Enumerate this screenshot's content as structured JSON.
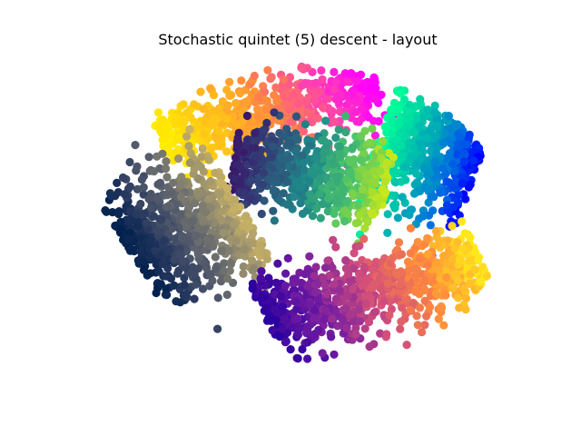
{
  "chart_data": {
    "type": "scatter",
    "title": "Stochastic quintet (5) descent - layout",
    "xlabel": "",
    "ylabel": "",
    "axes_visible": false,
    "grid": false,
    "legend": "none",
    "xlim": [
      -1.0,
      1.0
    ],
    "ylim": [
      -1.0,
      1.0
    ],
    "approx_point_count": 3500,
    "clusters": [
      {
        "id": "outer-yellow-orange-magenta-top",
        "color_ramp": [
          "#ffee00",
          "#ffc21a",
          "#ff8a3d",
          "#ff3fb2",
          "#ff00ff"
        ],
        "center": [
          -0.15,
          0.7
        ],
        "spread": [
          0.55,
          0.25
        ],
        "rotation_deg": 20,
        "points": 650
      },
      {
        "id": "teal-blue-right-lobe",
        "color_ramp": [
          "#00ff99",
          "#00d6a4",
          "#00a6b8",
          "#0070e0",
          "#0000ff"
        ],
        "center": [
          0.62,
          0.45
        ],
        "spread": [
          0.25,
          0.45
        ],
        "rotation_deg": -15,
        "points": 650
      },
      {
        "id": "center-purple-teal-green",
        "color_ramp": [
          "#3a176b",
          "#2f4f7a",
          "#1e8a8a",
          "#4cc46a",
          "#c8e81a"
        ],
        "center": [
          0.05,
          0.3
        ],
        "spread": [
          0.38,
          0.3
        ],
        "rotation_deg": -10,
        "points": 650
      },
      {
        "id": "left-navy-grey-khaki",
        "color_ramp": [
          "#00204d",
          "#2a3a60",
          "#565d6c",
          "#8c8670",
          "#c9b265"
        ],
        "center": [
          -0.55,
          -0.05
        ],
        "spread": [
          0.3,
          0.45
        ],
        "rotation_deg": 25,
        "points": 750
      },
      {
        "id": "bottom-indigo-red-yellow",
        "color_ramp": [
          "#2b00a0",
          "#7a1fa0",
          "#d4507a",
          "#ff8a3d",
          "#ffe81a"
        ],
        "center": [
          0.35,
          -0.45
        ],
        "spread": [
          0.55,
          0.28
        ],
        "rotation_deg": 18,
        "points": 800
      }
    ]
  }
}
